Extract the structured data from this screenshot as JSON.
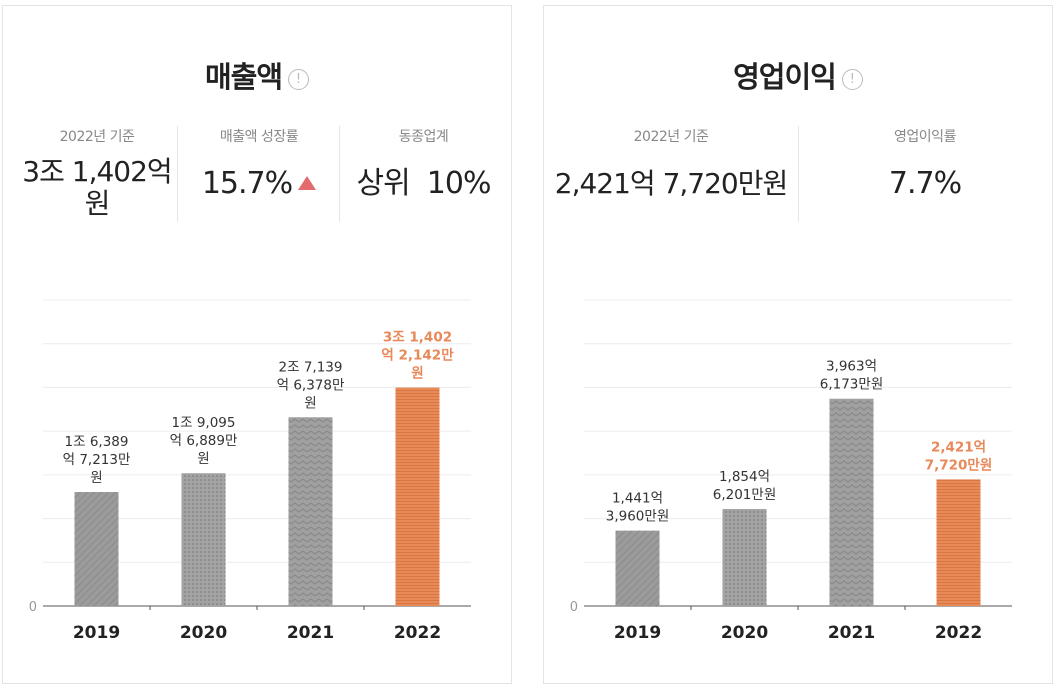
{
  "revenue": {
    "title": "매출액",
    "info_icon": "ⓘ",
    "stats": [
      {
        "label": "2022년 기준",
        "value_line1": "3조 1,402억",
        "value_line2": "원"
      },
      {
        "label": "매출액 성장률",
        "value": "15.7%"
      },
      {
        "label": "동종업계",
        "value": "상위  10%"
      }
    ]
  },
  "operating_profit": {
    "title": "영업이익",
    "info_icon": "ⓘ",
    "stats": [
      {
        "label": "2022년 기준",
        "value": "2,421억 7,720만원"
      },
      {
        "label": "영업이익률",
        "value": "7.7%"
      }
    ]
  },
  "colors": {
    "bar": "#9b9b9b",
    "highlight": "#e8895a",
    "growth_up": "#e36b6b"
  },
  "chart_data": [
    {
      "type": "bar",
      "title": "매출액",
      "categories": [
        "2019",
        "2020",
        "2021",
        "2022"
      ],
      "values": [
        16389,
        19095,
        27139,
        31402
      ],
      "unit": "억원",
      "data_labels": [
        [
          "1조 6,389",
          "억 7,213만",
          "원"
        ],
        [
          "1조 9,095",
          "억 6,889만",
          "원"
        ],
        [
          "2조 7,139",
          "억 6,378만",
          "원"
        ],
        [
          "3조 1,402",
          "억 2,142만",
          "원"
        ]
      ],
      "ylim": [
        0,
        44000
      ],
      "y_tick_label": "0",
      "highlight_index": 3,
      "grid": true
    },
    {
      "type": "bar",
      "title": "영업이익",
      "categories": [
        "2019",
        "2020",
        "2021",
        "2022"
      ],
      "values": [
        1441,
        1854,
        3963,
        2421
      ],
      "unit": "억원",
      "data_labels": [
        [
          "1,441억",
          "3,960만원"
        ],
        [
          "1,854억",
          "6,201만원"
        ],
        [
          "3,963억",
          "6,173만원"
        ],
        [
          "2,421억",
          "7,720만원"
        ]
      ],
      "ylim": [
        0,
        5850
      ],
      "y_tick_label": "0",
      "highlight_index": 3,
      "grid": true
    }
  ]
}
